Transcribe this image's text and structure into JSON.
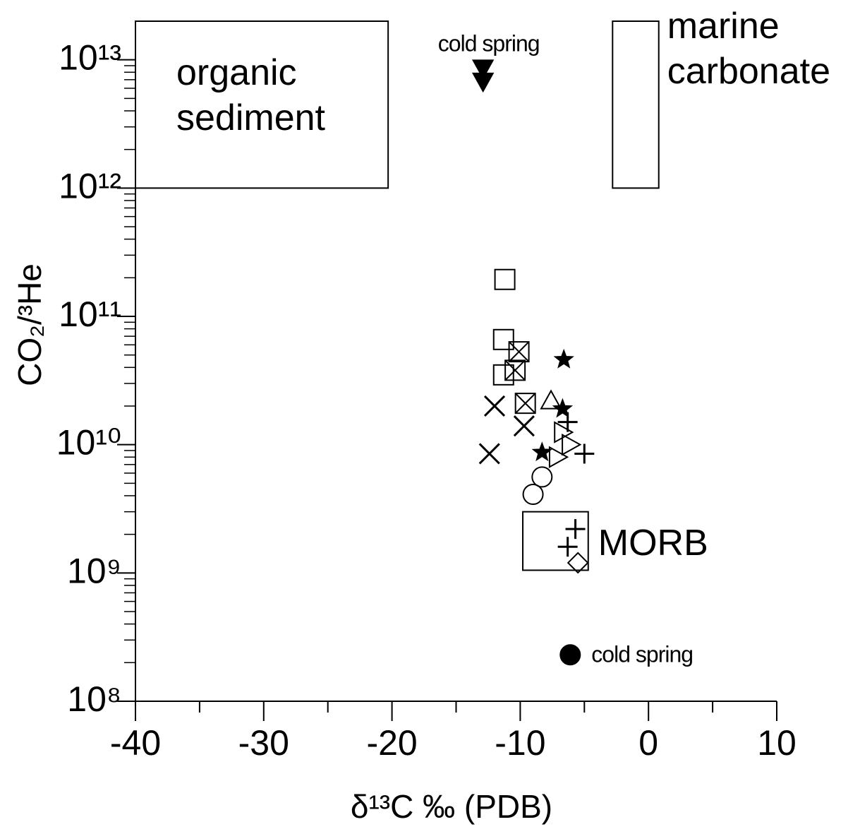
{
  "chart_data": {
    "type": "scatter",
    "x_label": "δ¹³C ‰ (PDB)",
    "y_label": "CO₂/³He",
    "xlim": [
      -40,
      10
    ],
    "xticks": [
      -40,
      -30,
      -20,
      -10,
      0,
      10
    ],
    "xminorticks": [
      -35,
      -25,
      -15,
      -5,
      5
    ],
    "ylim": [
      100000000,
      20000000000000
    ],
    "yscale": "log",
    "yticks": [
      {
        "value": 100000000,
        "label": "10⁸"
      },
      {
        "value": 1000000000,
        "label": "10⁹"
      },
      {
        "value": 10000000000,
        "label": "10¹⁰"
      },
      {
        "value": 100000000000,
        "label": "10¹¹"
      },
      {
        "value": 1000000000000,
        "label": "10¹²"
      },
      {
        "value": 10000000000000,
        "label": "10¹³"
      }
    ],
    "yminorticks": [
      200000000,
      300000000,
      400000000,
      500000000,
      600000000,
      700000000,
      800000000,
      900000000,
      2000000000,
      3000000000,
      4000000000,
      5000000000,
      6000000000,
      7000000000,
      8000000000,
      9000000000,
      20000000000,
      30000000000,
      40000000000,
      50000000000,
      60000000000,
      70000000000,
      80000000000,
      90000000000,
      200000000000,
      300000000000,
      400000000000,
      500000000000,
      600000000000,
      700000000000,
      800000000000,
      900000000000,
      2000000000000,
      3000000000000,
      4000000000000,
      5000000000000,
      6000000000000,
      7000000000000,
      8000000000000,
      9000000000000
    ],
    "regions": [
      {
        "label": [
          "organic",
          "sediment"
        ],
        "label_position": "inside",
        "x": [
          -40,
          -20.3
        ],
        "y": [
          1000000000000,
          20000000000000
        ]
      },
      {
        "label": [
          "marine",
          "carbonate"
        ],
        "label_position": "right",
        "x": [
          -2.8,
          0.8
        ],
        "y": [
          1000000000000,
          20000000000000
        ]
      },
      {
        "label": [
          "MORB"
        ],
        "label_position": "right",
        "x": [
          -9.8,
          -4.7
        ],
        "y": [
          1050000000,
          3000000000
        ]
      }
    ],
    "color": "#000000",
    "series": [
      {
        "marker": "square",
        "x": [
          -11.2,
          -11.3,
          -11.3
        ],
        "y": [
          194000000000,
          66000000000,
          35000000000
        ]
      },
      {
        "marker": "crossed-square",
        "x": [
          -10.1,
          -10.4,
          -9.6
        ],
        "y": [
          53000000000,
          38000000000,
          21000000000
        ]
      },
      {
        "marker": "x",
        "x": [
          -12.0,
          -9.7,
          -12.4
        ],
        "y": [
          20000000000,
          14000000000,
          8500000000
        ]
      },
      {
        "marker": "filled-star",
        "x": [
          -6.6,
          -6.7,
          -8.3
        ],
        "y": [
          46000000000,
          19000000000,
          8700000000
        ]
      },
      {
        "marker": "triangle-up",
        "x": [
          -7.6
        ],
        "y": [
          22000000000
        ]
      },
      {
        "marker": "triangle-right",
        "x": [
          -6.7,
          -6.1,
          -7.1
        ],
        "y": [
          12500000000,
          10000000000,
          8000000000
        ]
      },
      {
        "marker": "plus",
        "x": [
          -6.3,
          -5.0,
          -5.7,
          -6.3
        ],
        "y": [
          15000000000,
          8500000000,
          2200000000,
          1600000000
        ]
      },
      {
        "marker": "circle",
        "x": [
          -8.3,
          -9.0
        ],
        "y": [
          5600000000,
          4100000000
        ]
      },
      {
        "marker": "diamond",
        "x": [
          -5.5
        ],
        "y": [
          1200000000
        ]
      },
      {
        "marker": "filled-circle",
        "label": "cold spring",
        "label_position": "right",
        "x": [
          -6.1
        ],
        "y": [
          230000000
        ]
      },
      {
        "marker": "filled-triangle-down",
        "label": "cold spring",
        "label_position": "above",
        "x": [
          -12.9,
          -12.9
        ],
        "y": [
          8600000000000,
          6800000000000
        ]
      }
    ]
  }
}
